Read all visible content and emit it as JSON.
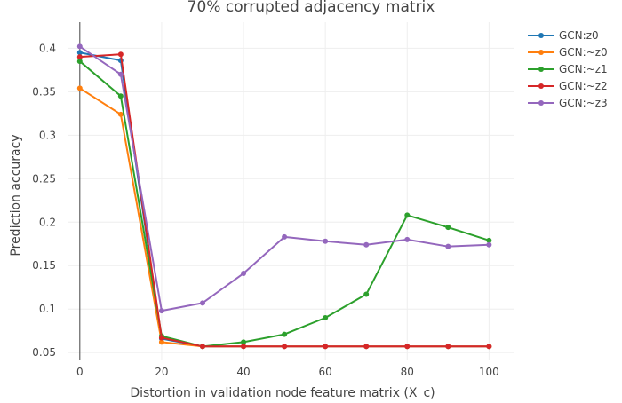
{
  "chart_data": {
    "type": "line",
    "title": "70% corrupted adjacency matrix",
    "xlabel": "Distortion in validation node feature matrix (X_c)",
    "ylabel": "Prediction accuracy",
    "xlim": [
      -3,
      106
    ],
    "ylim": [
      0.042,
      0.43
    ],
    "x": [
      0,
      10,
      20,
      30,
      40,
      50,
      60,
      70,
      80,
      90,
      100
    ],
    "xticks": [
      0,
      20,
      40,
      60,
      80,
      100
    ],
    "xtick_labels": [
      "0",
      "20",
      "40",
      "60",
      "80",
      "100"
    ],
    "yticks": [
      0.05,
      0.1,
      0.15,
      0.2,
      0.25,
      0.3,
      0.35,
      0.4
    ],
    "ytick_labels": [
      "0.05",
      "0.1",
      "0.15",
      "0.2",
      "0.25",
      "0.3",
      "0.35",
      "0.4"
    ],
    "legend_position": "top-right",
    "grid": true,
    "series": [
      {
        "name": "GCN:z0",
        "color": "#1f77b4",
        "values": [
          0.395,
          0.386,
          0.066,
          0.057,
          0.057,
          0.057,
          0.057,
          0.057,
          0.057,
          0.057,
          0.057
        ]
      },
      {
        "name": "GCN:~z0",
        "color": "#ff7f0e",
        "values": [
          0.354,
          0.324,
          0.062,
          0.057,
          0.057,
          0.057,
          0.057,
          0.057,
          0.057,
          0.057,
          0.057
        ]
      },
      {
        "name": "GCN:~z1",
        "color": "#2ca02c",
        "values": [
          0.385,
          0.345,
          0.069,
          0.057,
          0.062,
          0.071,
          0.09,
          0.117,
          0.208,
          0.194,
          0.179
        ]
      },
      {
        "name": "GCN:~z2",
        "color": "#d62728",
        "values": [
          0.39,
          0.393,
          0.067,
          0.057,
          0.057,
          0.057,
          0.057,
          0.057,
          0.057,
          0.057,
          0.057
        ]
      },
      {
        "name": "GCN:~z3",
        "color": "#9467bd",
        "values": [
          0.402,
          0.37,
          0.098,
          0.107,
          0.141,
          0.183,
          0.178,
          0.174,
          0.18,
          0.172,
          0.174
        ]
      }
    ]
  }
}
